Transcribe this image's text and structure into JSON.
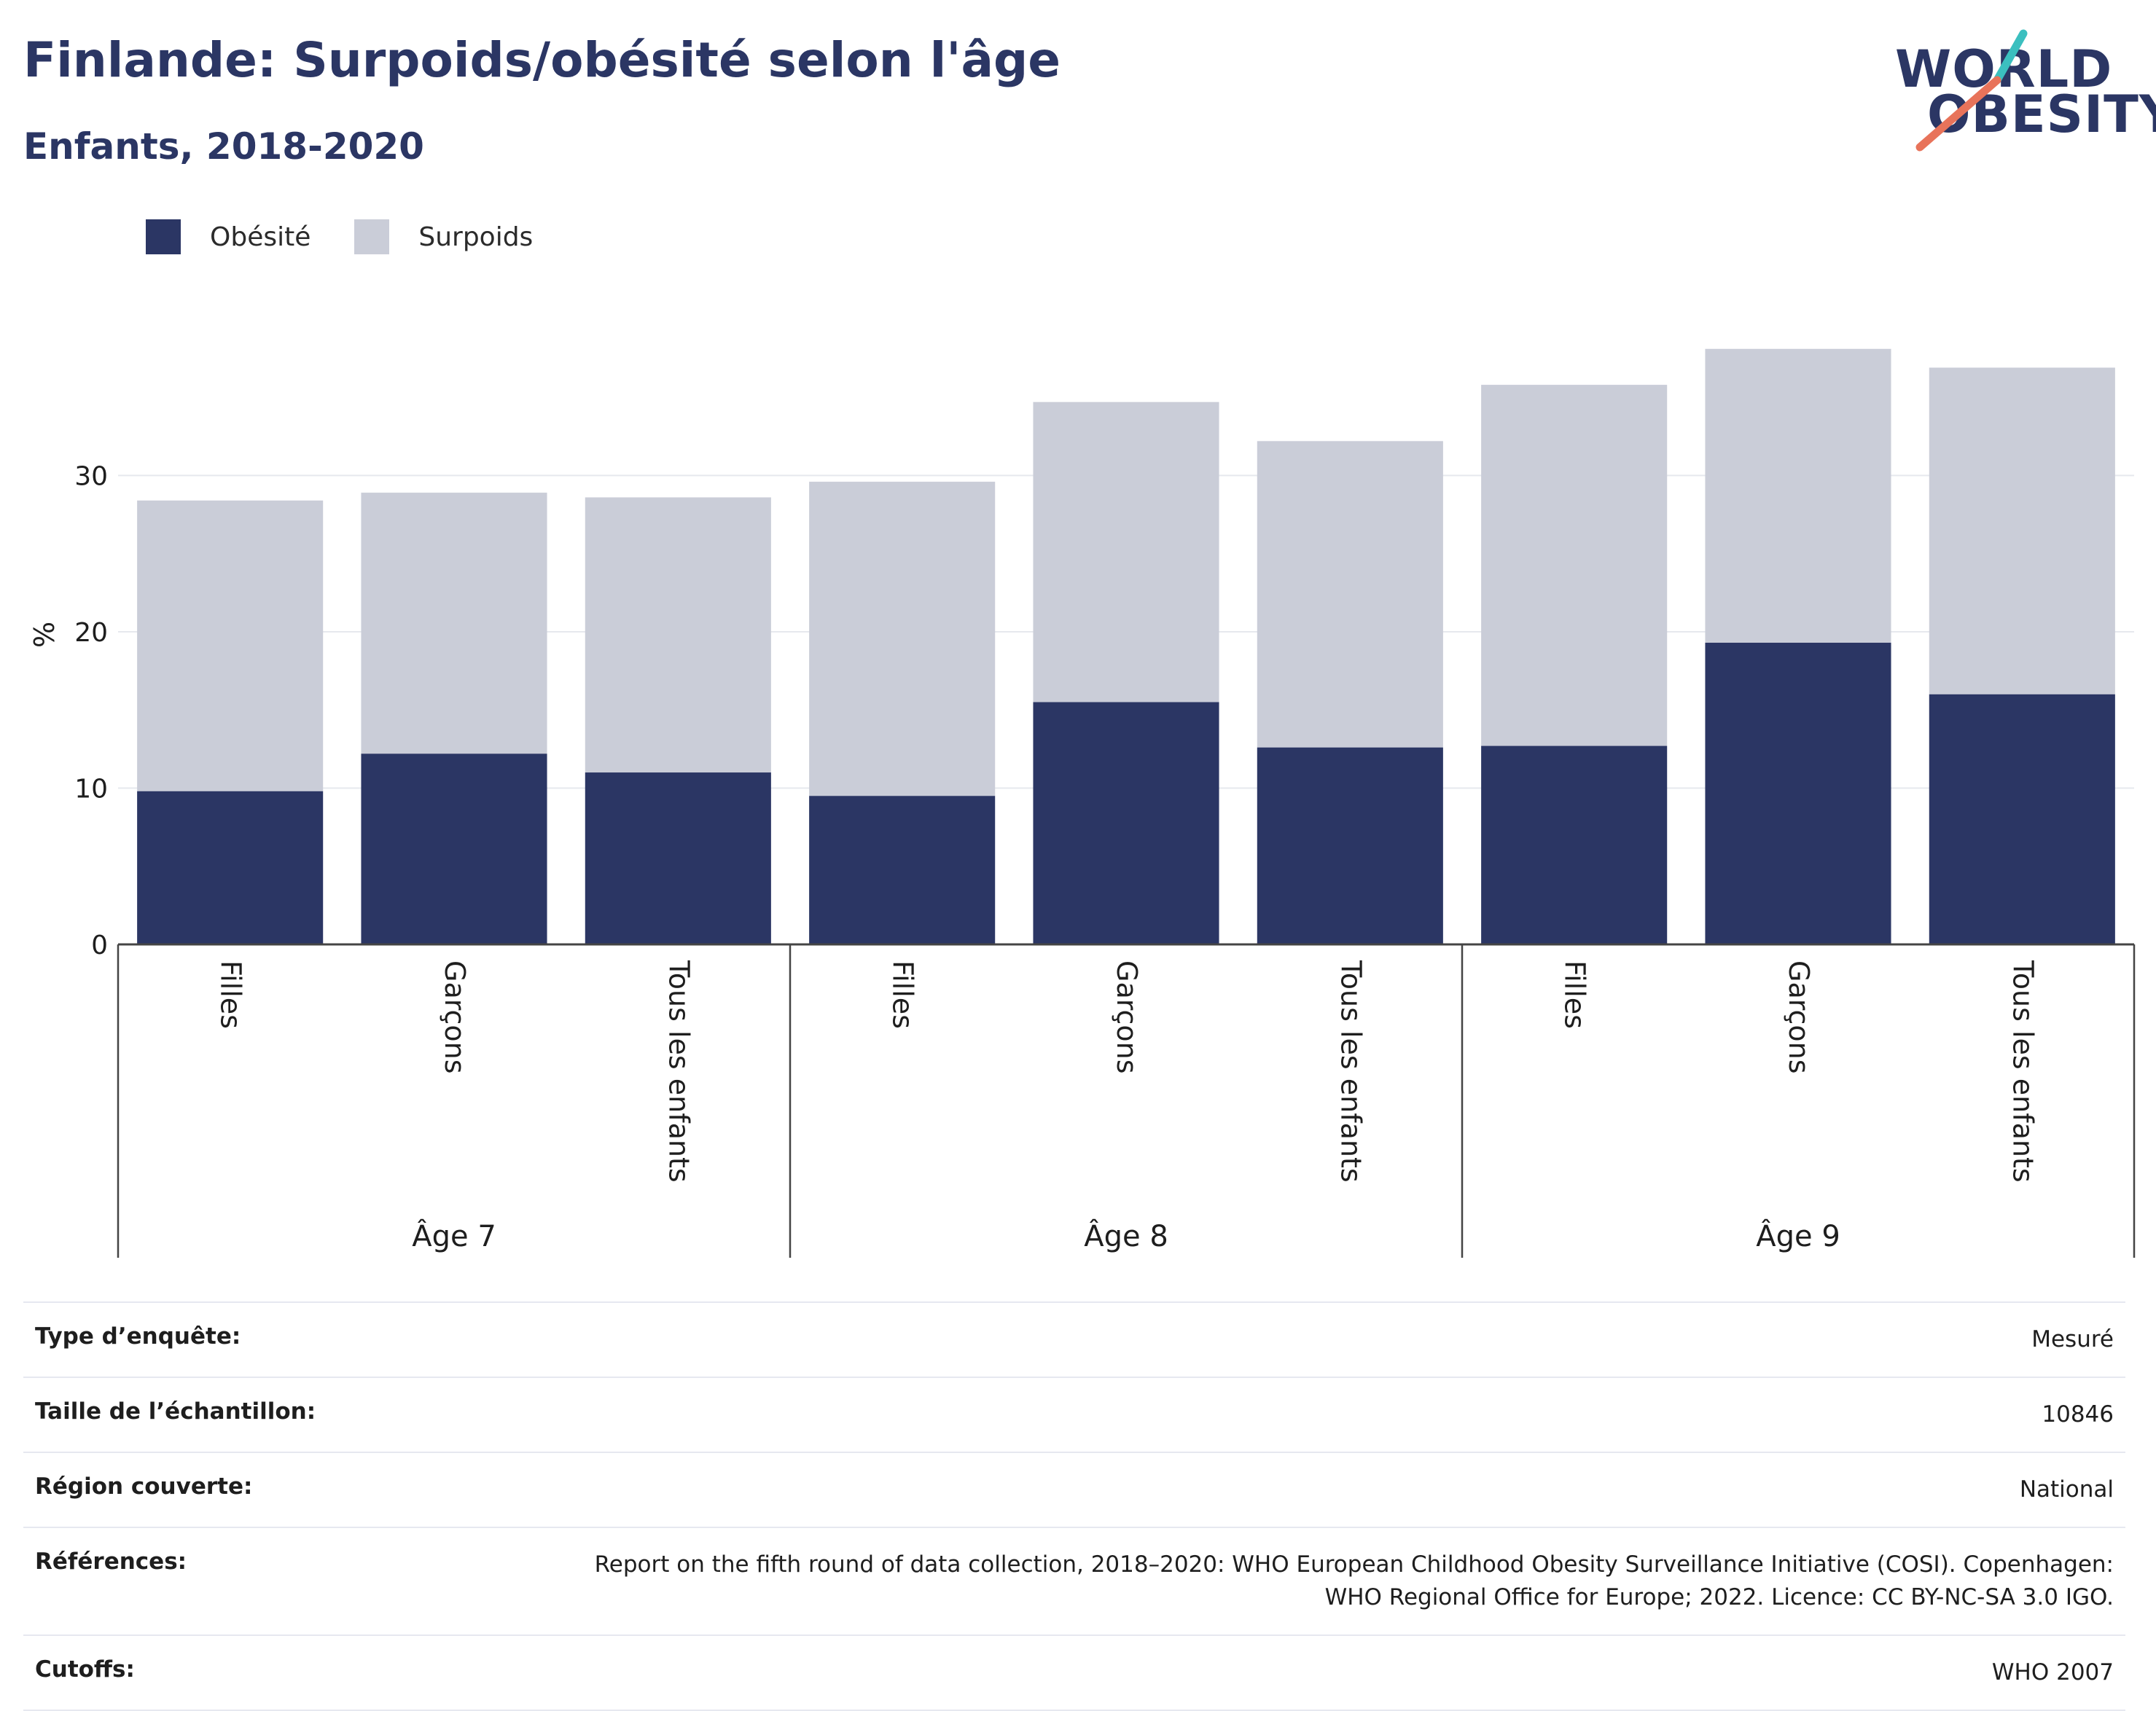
{
  "header": {
    "title": "Finlande: Surpoids/obésité selon l'âge",
    "subtitle": "Enfants, 2018-2020"
  },
  "logo": {
    "line1": "WORLD",
    "line2": "OBESITY"
  },
  "colors": {
    "obesity": "#2b3664",
    "overweight": "#cacdd8",
    "text": "#2b3664",
    "accent_teal": "#3bbfbf",
    "accent_coral": "#e8735a"
  },
  "chart_data": {
    "type": "bar",
    "stacked": true,
    "ylabel": "%",
    "ylim": [
      0,
      40
    ],
    "yticks": [
      0,
      10,
      20,
      30
    ],
    "grid": true,
    "legend_position": "top-left",
    "groups": [
      {
        "label": "Âge 7",
        "categories": [
          "Filles",
          "Garçons",
          "Tous les enfants"
        ]
      },
      {
        "label": "Âge 8",
        "categories": [
          "Filles",
          "Garçons",
          "Tous les enfants"
        ]
      },
      {
        "label": "Âge 9",
        "categories": [
          "Filles",
          "Garçons",
          "Tous les enfants"
        ]
      }
    ],
    "series": [
      {
        "name": "Obésité",
        "color": "#2b3664",
        "values": [
          9.8,
          12.2,
          11.0,
          9.5,
          15.5,
          12.6,
          12.7,
          19.3,
          16.0
        ]
      },
      {
        "name": "Surpoids",
        "color": "#cacdd8",
        "values": [
          18.6,
          16.7,
          17.6,
          20.1,
          19.2,
          19.6,
          23.1,
          18.8,
          20.9
        ]
      }
    ]
  },
  "info": [
    {
      "key": "Type d’enquête:",
      "value": "Mesuré"
    },
    {
      "key": "Taille de l’échantillon:",
      "value": "10846"
    },
    {
      "key": "Région couverte:",
      "value": "National"
    },
    {
      "key": "Références:",
      "value": "Report on the fifth round of data collection, 2018–2020: WHO European Childhood Obesity Surveillance Initiative (COSI). Copenhagen: WHO Regional Office for Europe; 2022. Licence: CC BY-NC-SA 3.0 IGO."
    },
    {
      "key": "Cutoffs:",
      "value": "WHO 2007"
    }
  ]
}
